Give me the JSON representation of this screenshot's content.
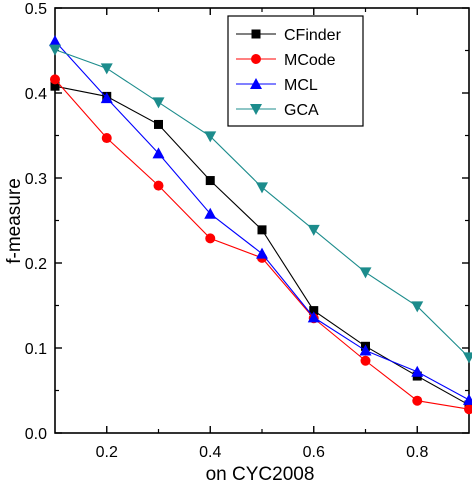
{
  "chart_data": {
    "type": "line",
    "xlabel": "on CYC2008",
    "ylabel": "f-measure",
    "xlim": [
      0.1,
      0.9
    ],
    "ylim": [
      0.0,
      0.5
    ],
    "x_ticks": [
      0.2,
      0.4,
      0.6,
      0.8
    ],
    "x_tick_labels": [
      "0.2",
      "0.4",
      "0.6",
      "0.8"
    ],
    "y_ticks": [
      0.0,
      0.1,
      0.2,
      0.3,
      0.4,
      0.5
    ],
    "y_tick_labels": [
      "0.0",
      "0.1",
      "0.2",
      "0.3",
      "0.4",
      "0.5"
    ],
    "grid": false,
    "legend_position": "top-right",
    "x": [
      0.1,
      0.2,
      0.3,
      0.4,
      0.5,
      0.6,
      0.7,
      0.8,
      0.9
    ],
    "series": [
      {
        "name": "CFinder",
        "values": [
          0.408,
          0.396,
          0.363,
          0.297,
          0.239,
          0.144,
          0.102,
          0.067,
          0.033
        ],
        "line_color": "#000000",
        "marker_color": "#000000",
        "marker": "square"
      },
      {
        "name": "MCode",
        "values": [
          0.416,
          0.347,
          0.291,
          0.229,
          0.206,
          0.135,
          0.085,
          0.038,
          0.028
        ],
        "line_color": "#ff0000",
        "marker_color": "#ff0000",
        "marker": "circle"
      },
      {
        "name": "MCL",
        "values": [
          0.461,
          0.394,
          0.329,
          0.258,
          0.211,
          0.136,
          0.097,
          0.072,
          0.039
        ],
        "line_color": "#0000ff",
        "marker_color": "#0000ff",
        "marker": "triangle-up"
      },
      {
        "name": "GCA",
        "values": [
          0.451,
          0.429,
          0.389,
          0.349,
          0.289,
          0.239,
          0.189,
          0.149,
          0.089
        ],
        "line_color": "#1c8c8c",
        "marker_color": "#1c8c8c",
        "marker": "triangle-down"
      }
    ]
  }
}
